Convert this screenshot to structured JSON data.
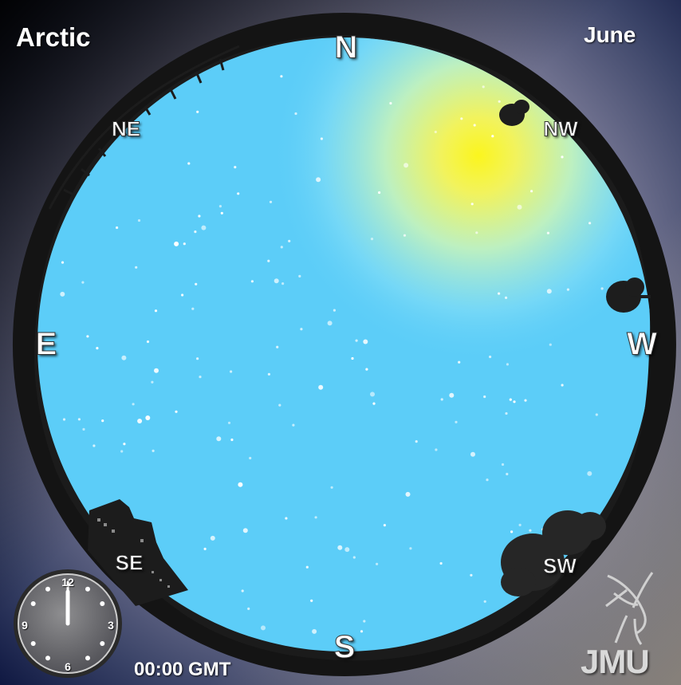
{
  "region": "Arctic",
  "month": "June",
  "time": "00:00 GMT",
  "directions": {
    "north": "N",
    "south": "S",
    "east": "E",
    "west": "W",
    "northeast": "NE",
    "northwest": "NW",
    "southeast": "SE",
    "southwest": "SW"
  },
  "clock": {
    "numerals": [
      "12",
      "3",
      "6",
      "9"
    ],
    "hours": 0,
    "minutes": 0
  },
  "logo": {
    "text": "JMU",
    "icon": "liver-bird-icon"
  },
  "colors": {
    "sky": "#5ccdf8",
    "sun_glow": "#f6f53a",
    "horizon_silhouette": "#141414",
    "frame_ring": "#222222",
    "background_top": "#0d1640"
  }
}
